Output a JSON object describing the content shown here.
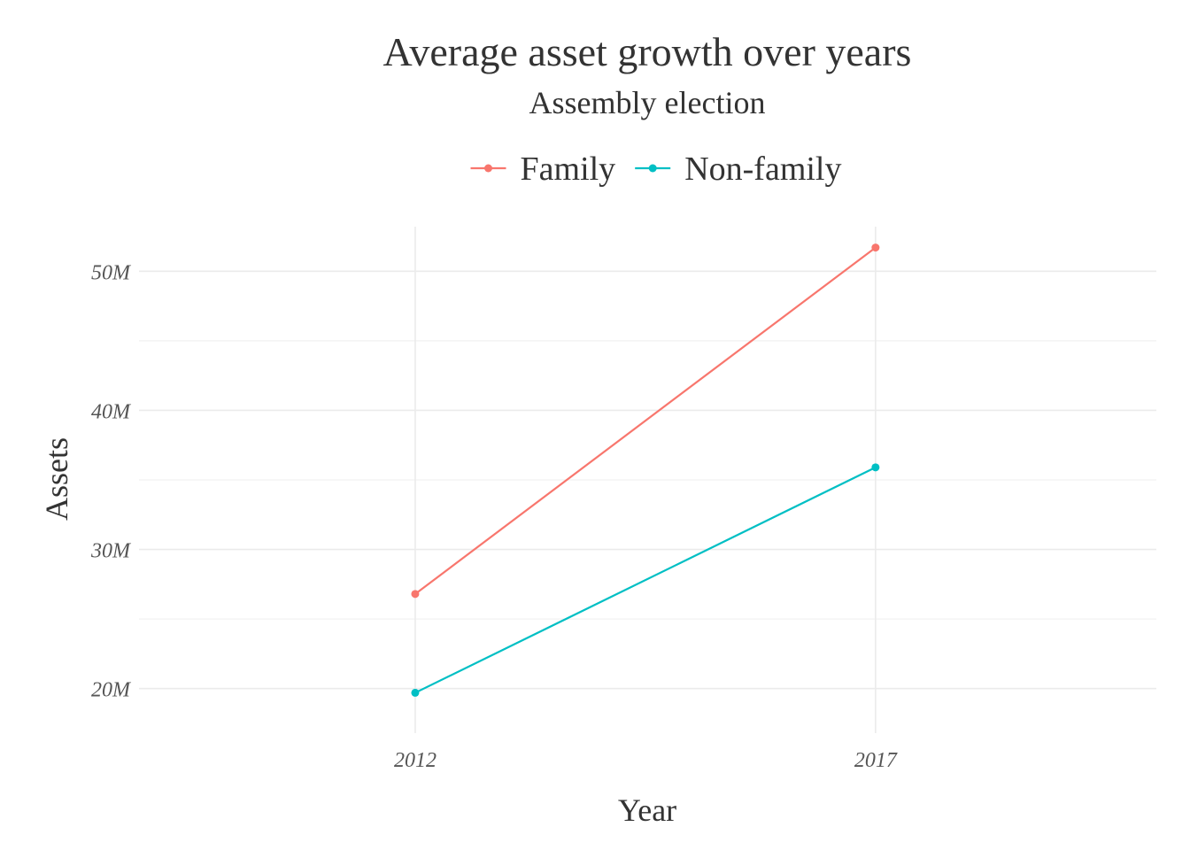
{
  "chart_data": {
    "type": "line",
    "title": "Average asset growth over years",
    "subtitle": "Assembly election",
    "xlabel": "Year",
    "ylabel": "Assets",
    "x": [
      2012,
      2017
    ],
    "x_ticks": [
      "2012",
      "2017"
    ],
    "xlim": [
      2009,
      2020.05
    ],
    "ylim": [
      16800000,
      53200000
    ],
    "y_ticks": [
      20000000,
      30000000,
      40000000,
      50000000
    ],
    "y_tick_labels": [
      "20M",
      "30M",
      "40M",
      "50M"
    ],
    "grid": true,
    "legend_position": "top",
    "series": [
      {
        "name": "Family",
        "color": "#F8766D",
        "values": [
          26800000,
          51700000
        ]
      },
      {
        "name": "Non-family",
        "color": "#00BFC4",
        "values": [
          19700000,
          35900000
        ]
      }
    ]
  }
}
